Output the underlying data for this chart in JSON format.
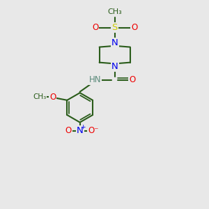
{
  "bg_color": "#e8e8e8",
  "bond_color": "#2a5c1a",
  "bond_width": 1.5,
  "N_color": "#0000ee",
  "O_color": "#ee0000",
  "S_color": "#cccc00",
  "C_color": "#2a5c1a",
  "H_color": "#5a8a7a",
  "text_fontsize": 8.5,
  "figsize": [
    3.0,
    3.0
  ],
  "dpi": 100,
  "xlim": [
    0,
    10
  ],
  "ylim": [
    0,
    10
  ]
}
